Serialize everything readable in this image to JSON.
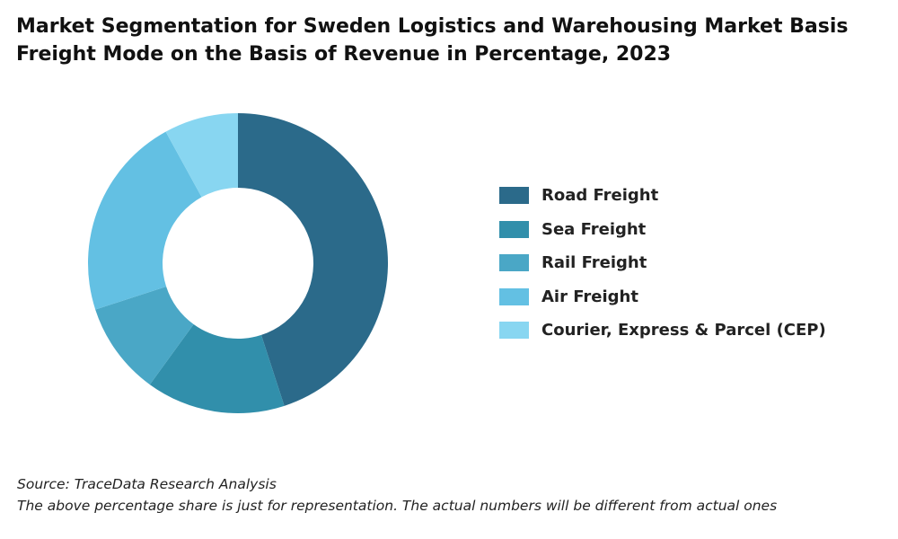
{
  "title": {
    "line1": "Market Segmentation for Sweden Logistics and Warehousing Market Basis",
    "line2": "Freight Mode on the Basis of Revenue in Percentage, 2023"
  },
  "chart_data": {
    "type": "pie",
    "variant": "donut",
    "categories": [
      "Road Freight",
      "Sea Freight",
      "Rail Freight",
      "Air Freight",
      "Courier, Express & Parcel (CEP)"
    ],
    "values": [
      45,
      15,
      10,
      22,
      8
    ],
    "unit": "%",
    "colors": [
      "#2b6a8a",
      "#318fab",
      "#4aa7c6",
      "#63c0e3",
      "#88d6f1"
    ],
    "legend_position": "right"
  },
  "legend": {
    "items": [
      {
        "label": "Road Freight",
        "color": "#2b6a8a"
      },
      {
        "label": "Sea Freight",
        "color": "#318fab"
      },
      {
        "label": "Rail Freight",
        "color": "#4aa7c6"
      },
      {
        "label": "Air Freight",
        "color": "#63c0e3"
      },
      {
        "label": "Courier, Express & Parcel (CEP)",
        "color": "#88d6f1"
      }
    ]
  },
  "footer": {
    "source": "Source: TraceData Research Analysis",
    "note": "The above percentage share is just for representation. The actual numbers will be different from actual ones"
  }
}
